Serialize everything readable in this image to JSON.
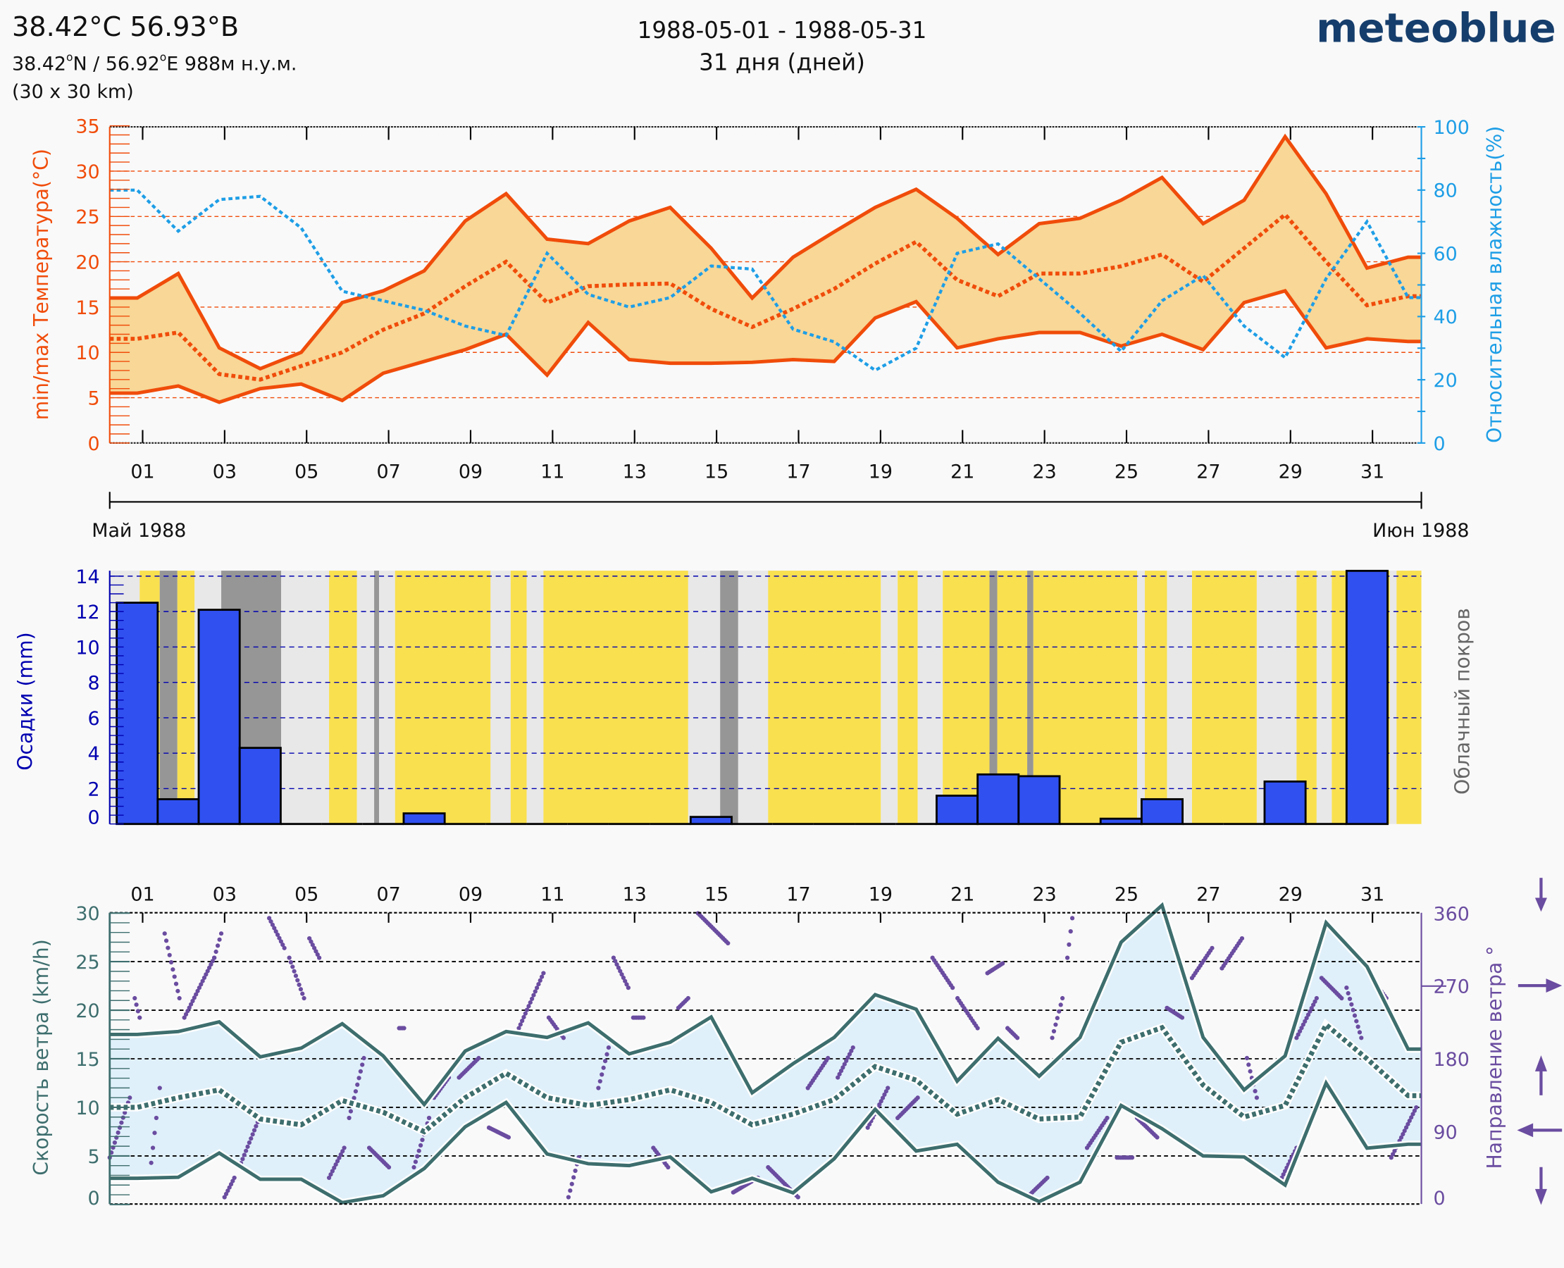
{
  "header": {
    "title": "38.42°C 56.93°B",
    "coords_lat": "38.42",
    "coords_lat_unit": "N / 56.92",
    "coords_lon_unit": "E   988м н.у.м.",
    "degree_mark": "o",
    "resolution": "(30 x 30 km)",
    "date_range": "1988-05-01 - 1988-05-31",
    "days": "31 дня (дней)",
    "logo": "meteoblue"
  },
  "month_labels": {
    "start": "Май 1988",
    "end": "Июн 1988"
  },
  "colors": {
    "temp": "#f04c0a",
    "temp_fill": "#f8d797",
    "humidity": "#1e9ee6",
    "precip": "#3050f0",
    "precip_axis": "#0000b0",
    "cloud_axis": "#666666",
    "sunny": "#f9e04f",
    "cloudy": "#e8e8e8",
    "overcast": "#969696",
    "wind": "#3e6e6e",
    "wind_fill": "#e0f0fa",
    "direction": "#6a4ca0"
  },
  "chart_data": [
    {
      "type": "line",
      "name": "temperature-humidity",
      "ylabel": "min/max Температура(°C)",
      "y2label": "Относительная влажность(%)",
      "ylim": [
        0,
        35
      ],
      "y2lim": [
        0,
        100
      ],
      "yticks": [
        0,
        5,
        10,
        15,
        20,
        25,
        30,
        35
      ],
      "y2ticks": [
        0,
        20,
        40,
        60,
        80,
        100
      ],
      "xtick_labels": [
        "01",
        "03",
        "05",
        "07",
        "09",
        "11",
        "13",
        "15",
        "17",
        "19",
        "21",
        "23",
        "25",
        "27",
        "29",
        "31"
      ],
      "x_days": "1..32 (May 1 – June 1)",
      "series": [
        {
          "name": "max temperature",
          "values": [
            16,
            18.7,
            10.5,
            8.2,
            10,
            15.5,
            16.8,
            19,
            24.5,
            27.5,
            22.5,
            22,
            24.5,
            26,
            21.5,
            16,
            20.5,
            23.3,
            26,
            28,
            24.8,
            20.8,
            24.2,
            24.8,
            26.8,
            29.3,
            24.2,
            26.8,
            33.8,
            27.5,
            19.3,
            20.5
          ]
        },
        {
          "name": "mean temperature",
          "values": [
            11.5,
            12.2,
            7.6,
            7,
            8.5,
            10,
            12.5,
            14.3,
            17.3,
            20,
            15.5,
            17.3,
            17.5,
            17.6,
            14.8,
            12.8,
            14.8,
            17,
            19.8,
            22.2,
            18,
            16.2,
            18.7,
            18.7,
            19.5,
            20.8,
            17.8,
            21.5,
            25.2,
            20,
            15.2,
            16.2
          ]
        },
        {
          "name": "min temperature",
          "values": [
            5.5,
            6.3,
            4.5,
            6,
            6.5,
            4.7,
            7.7,
            9,
            10.3,
            12,
            7.5,
            13.3,
            9.2,
            8.8,
            8.8,
            8.9,
            9.2,
            9,
            13.8,
            15.6,
            10.5,
            11.5,
            12.2,
            12.2,
            10.7,
            12,
            10.3,
            15.5,
            16.8,
            10.5,
            11.5,
            11.2
          ]
        },
        {
          "name": "relative humidity",
          "values": [
            80,
            67,
            77,
            78,
            68,
            48,
            45,
            42,
            37,
            34,
            60,
            47,
            43,
            46,
            56,
            55,
            36,
            32,
            23,
            30,
            60,
            63,
            52,
            41,
            29,
            45,
            53,
            37,
            27,
            52,
            70,
            46
          ]
        }
      ]
    },
    {
      "type": "bar",
      "name": "precipitation-cloud",
      "ylabel": "Осадки (mm)",
      "y2label": "Облачный покров",
      "ylim": [
        0,
        14.3
      ],
      "yticks": [
        0,
        2,
        4,
        6,
        8,
        10,
        12,
        14
      ],
      "categories": "days 1..31",
      "values": [
        12.5,
        1.4,
        12.1,
        4.3,
        0,
        0,
        0,
        0.6,
        0,
        0,
        0,
        0,
        0,
        0,
        0.4,
        0,
        0,
        0,
        0,
        0,
        1.6,
        2.8,
        2.7,
        0,
        0.3,
        1.4,
        0,
        0,
        2.4,
        0,
        14.3
      ],
      "cloud_cover_bands": [
        [
          -0.17,
          0.56,
          "cloudy"
        ],
        [
          0.56,
          1.05,
          "sunny"
        ],
        [
          1.05,
          1.48,
          "overcast"
        ],
        [
          1.48,
          1.9,
          "sunny"
        ],
        [
          1.9,
          2.55,
          "cloudy"
        ],
        [
          2.55,
          4.01,
          "overcast"
        ],
        [
          4.01,
          5.18,
          "cloudy"
        ],
        [
          5.18,
          5.86,
          "sunny"
        ],
        [
          5.86,
          6.28,
          "cloudy"
        ],
        [
          6.28,
          6.4,
          "overcast"
        ],
        [
          6.4,
          6.79,
          "cloudy"
        ],
        [
          6.79,
          9.12,
          "sunny"
        ],
        [
          9.12,
          9.61,
          "cloudy"
        ],
        [
          9.61,
          10.0,
          "sunny"
        ],
        [
          10.0,
          10.41,
          "cloudy"
        ],
        [
          10.41,
          13.94,
          "sunny"
        ],
        [
          13.94,
          14.72,
          "cloudy"
        ],
        [
          14.72,
          15.16,
          "overcast"
        ],
        [
          15.16,
          15.89,
          "cloudy"
        ],
        [
          15.89,
          18.64,
          "sunny"
        ],
        [
          18.64,
          19.05,
          "cloudy"
        ],
        [
          19.05,
          19.54,
          "sunny"
        ],
        [
          19.54,
          20.15,
          "cloudy"
        ],
        [
          20.15,
          21.29,
          "sunny"
        ],
        [
          21.29,
          21.48,
          "overcast"
        ],
        [
          21.48,
          22.21,
          "sunny"
        ],
        [
          22.21,
          22.36,
          "overcast"
        ],
        [
          22.36,
          24.89,
          "sunny"
        ],
        [
          24.89,
          25.08,
          "cloudy"
        ],
        [
          25.08,
          25.62,
          "sunny"
        ],
        [
          25.62,
          26.23,
          "cloudy"
        ],
        [
          26.23,
          27.81,
          "sunny"
        ],
        [
          27.81,
          28.78,
          "cloudy"
        ],
        [
          28.78,
          29.27,
          "sunny"
        ],
        [
          29.27,
          29.64,
          "cloudy"
        ],
        [
          29.64,
          31.05,
          "sunny"
        ],
        [
          31.05,
          31.22,
          "cloudy"
        ],
        [
          31.22,
          31.83,
          "sunny"
        ]
      ]
    },
    {
      "type": "line",
      "name": "wind",
      "ylabel": "Скорость ветра (km/h)",
      "y2label": "Направление ветра °",
      "ylim": [
        0,
        30
      ],
      "y2lim": [
        0,
        360
      ],
      "yticks": [
        0,
        5,
        10,
        15,
        20,
        25,
        30
      ],
      "y2ticks": [
        0,
        90,
        180,
        270,
        360
      ],
      "xtick_labels": [
        "01",
        "03",
        "05",
        "07",
        "09",
        "11",
        "13",
        "15",
        "17",
        "19",
        "21",
        "23",
        "25",
        "27",
        "29",
        "31"
      ],
      "series": [
        {
          "name": "max wind speed",
          "values": [
            17.5,
            17.8,
            18.8,
            15.2,
            16.1,
            18.6,
            15.3,
            10.3,
            15.8,
            17.8,
            17.2,
            18.7,
            15.5,
            16.7,
            19.3,
            11.5,
            14.5,
            17.2,
            21.6,
            20.1,
            12.7,
            17.1,
            13.2,
            17.2,
            27,
            30.8,
            17.2,
            11.8,
            15.3,
            29,
            24.5,
            16
          ]
        },
        {
          "name": "mean wind speed",
          "values": [
            10,
            11,
            11.8,
            8.8,
            8.2,
            10.7,
            9.5,
            7.5,
            11,
            13.5,
            11,
            10.2,
            10.8,
            11.8,
            10.5,
            8.2,
            9.3,
            10.8,
            14.2,
            12.8,
            9.3,
            10.8,
            8.8,
            9,
            16.7,
            18.2,
            12.3,
            9,
            10.2,
            18.5,
            15,
            11.2
          ]
        },
        {
          "name": "min wind speed",
          "values": [
            2.7,
            2.8,
            5.3,
            2.6,
            2.6,
            0.2,
            0.9,
            3.7,
            8,
            10.5,
            5.2,
            4.2,
            4,
            4.9,
            1.3,
            2.7,
            1.2,
            4.7,
            9.8,
            5.5,
            6.2,
            2.3,
            0.3,
            2.3,
            10.2,
            7.8,
            5,
            4.9,
            2,
            12.5,
            5.8,
            6.2
          ]
        }
      ],
      "direction_segments": [
        [
          -0.17,
          58,
          0.32,
          132
        ],
        [
          0.44,
          255,
          0.56,
          231
        ],
        [
          0.8,
          33,
          1.05,
          144
        ],
        [
          1.17,
          335,
          1.53,
          255
        ],
        [
          1.65,
          231,
          2.38,
          305
        ],
        [
          2.38,
          305,
          2.55,
          335
        ],
        [
          2.63,
          9,
          2.87,
          33
        ],
        [
          2.99,
          46,
          3.48,
          107
        ],
        [
          3.72,
          354,
          4.09,
          317
        ],
        [
          4.21,
          305,
          4.57,
          255
        ],
        [
          4.7,
          329,
          4.94,
          305
        ],
        [
          5.18,
          33,
          5.55,
          70
        ],
        [
          5.67,
          107,
          6.03,
          181
        ],
        [
          6.16,
          70,
          6.64,
          46
        ],
        [
          6.89,
          218,
          7.01,
          218
        ],
        [
          7.25,
          46,
          7.62,
          107
        ],
        [
          7.74,
          132,
          8.1,
          157
        ],
        [
          8.35,
          157,
          8.83,
          181
        ],
        [
          9.08,
          95,
          9.56,
          83
        ],
        [
          9.81,
          218,
          10.41,
          286
        ],
        [
          10.54,
          231,
          10.9,
          206
        ],
        [
          11.02,
          9,
          11.27,
          58
        ],
        [
          11.75,
          144,
          12.0,
          194
        ],
        [
          12.12,
          305,
          12.48,
          268
        ],
        [
          12.6,
          231,
          12.85,
          231
        ],
        [
          13.09,
          70,
          13.45,
          46
        ],
        [
          13.7,
          243,
          13.94,
          255
        ],
        [
          14.18,
          360,
          14.91,
          323
        ],
        [
          15.04,
          15,
          15.64,
          33
        ],
        [
          15.89,
          46,
          16.62,
          9
        ],
        [
          16.86,
          144,
          17.35,
          181
        ],
        [
          17.59,
          157,
          17.96,
          194
        ],
        [
          18.32,
          95,
          18.81,
          144
        ],
        [
          19.05,
          107,
          19.54,
          132
        ],
        [
          19.9,
          305,
          20.39,
          268
        ],
        [
          20.51,
          255,
          21.0,
          218
        ],
        [
          21.24,
          286,
          21.61,
          298
        ],
        [
          21.73,
          218,
          21.97,
          206
        ],
        [
          22.21,
          9,
          22.7,
          33
        ],
        [
          22.82,
          206,
          23.07,
          255
        ],
        [
          23.19,
          305,
          23.31,
          354
        ],
        [
          23.67,
          70,
          24.16,
          107
        ],
        [
          24.4,
          58,
          24.77,
          58
        ],
        [
          24.89,
          107,
          25.38,
          83
        ],
        [
          25.62,
          243,
          25.99,
          231
        ],
        [
          26.23,
          280,
          26.72,
          317
        ],
        [
          26.96,
          292,
          27.45,
          329
        ],
        [
          27.57,
          181,
          27.81,
          132
        ],
        [
          28.42,
          33,
          28.78,
          70
        ],
        [
          28.78,
          206,
          29.27,
          255
        ],
        [
          29.39,
          280,
          29.88,
          255
        ],
        [
          30.0,
          268,
          30.36,
          206
        ],
        [
          30.61,
          280,
          30.97,
          255
        ],
        [
          31.09,
          58,
          31.7,
          120
        ]
      ]
    }
  ]
}
